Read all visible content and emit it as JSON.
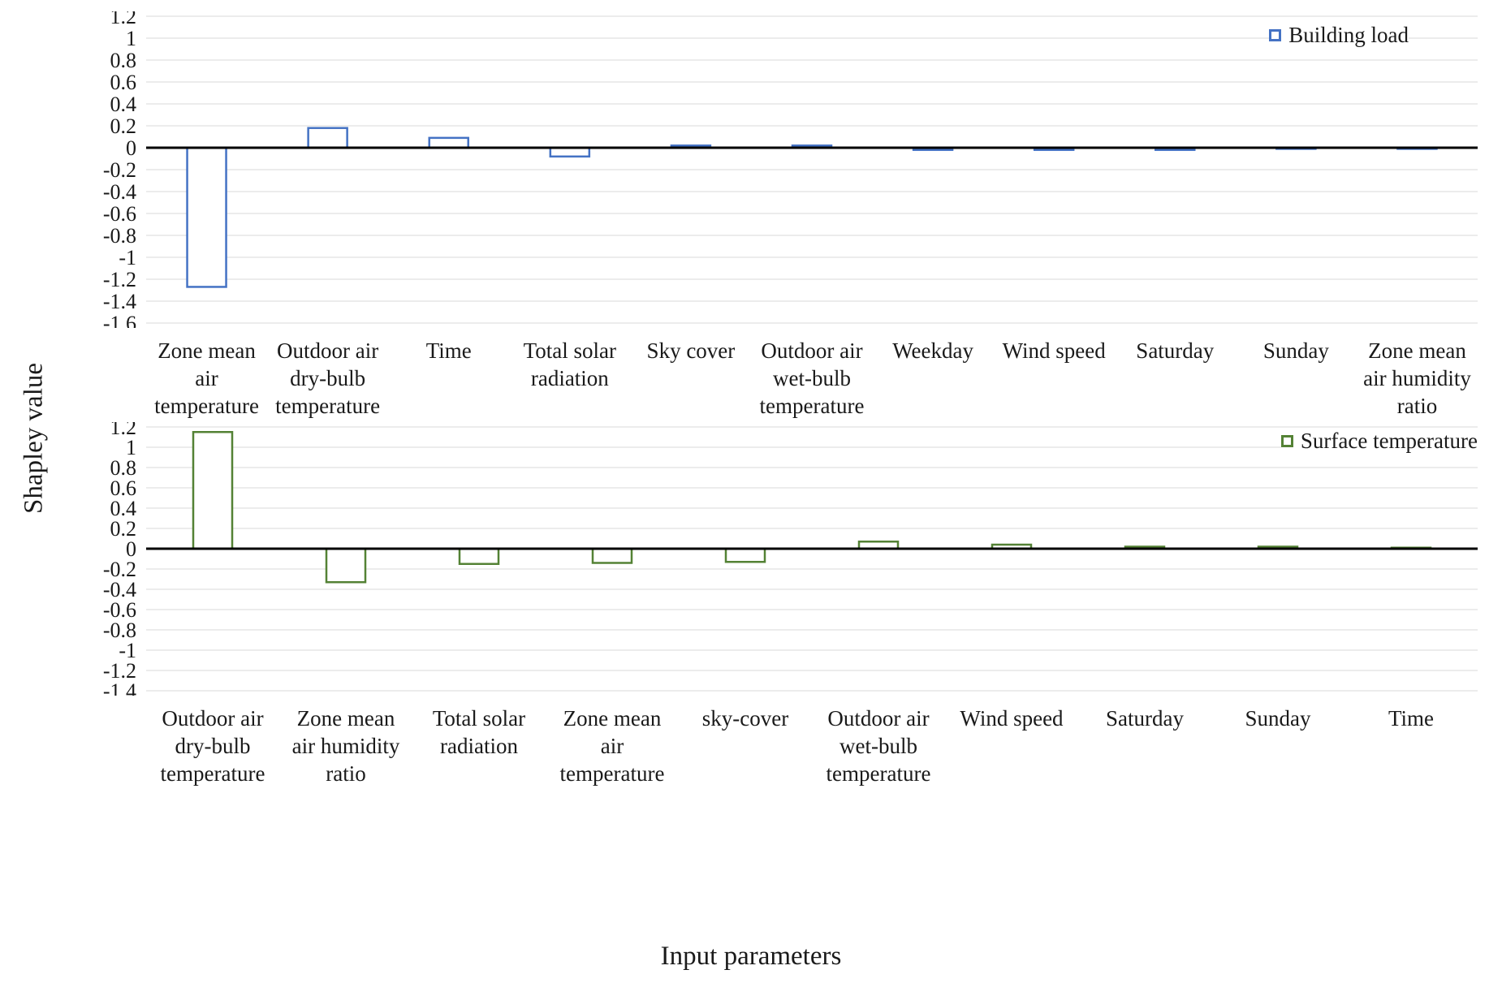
{
  "figure": {
    "y_axis_title": "Shapley value",
    "x_axis_title": "Input parameters"
  },
  "chart_data": [
    {
      "type": "bar",
      "legend": "Building load",
      "legend_position": "top-right",
      "color": "#4472C4",
      "grid": true,
      "ylim": [
        -1.6,
        1.2
      ],
      "ytick_step": 0.2,
      "categories": [
        "Zone mean\nair\ntemperature",
        "Outdoor air\ndry-bulb\ntemperature",
        "Time",
        "Total solar\nradiation",
        "Sky cover",
        "Outdoor air\nwet-bulb\ntemperature",
        "Weekday",
        "Wind speed",
        "Saturday",
        "Sunday",
        "Zone mean\nair humidity\nratio"
      ],
      "series": [
        {
          "name": "Building load",
          "values": [
            -1.27,
            0.18,
            0.09,
            -0.08,
            0.02,
            0.02,
            -0.02,
            -0.02,
            -0.02,
            -0.01,
            -0.01
          ]
        }
      ]
    },
    {
      "type": "bar",
      "legend": "Surface temperature",
      "legend_position": "top-right",
      "color": "#548235",
      "grid": true,
      "ylim": [
        -1.4,
        1.2
      ],
      "ytick_step": 0.2,
      "categories": [
        "Outdoor air\ndry-bulb\ntemperature",
        "Zone mean\nair humidity\nratio",
        "Total solar\nradiation",
        "Zone mean\nair\ntemperature",
        "sky-cover",
        "Outdoor air\nwet-bulb\ntemperature",
        "Wind speed",
        "Saturday",
        "Sunday",
        "Time"
      ],
      "series": [
        {
          "name": "Surface temperature",
          "values": [
            1.15,
            -0.33,
            -0.15,
            -0.14,
            -0.13,
            0.07,
            0.04,
            0.02,
            0.02,
            0.01
          ]
        }
      ]
    }
  ]
}
